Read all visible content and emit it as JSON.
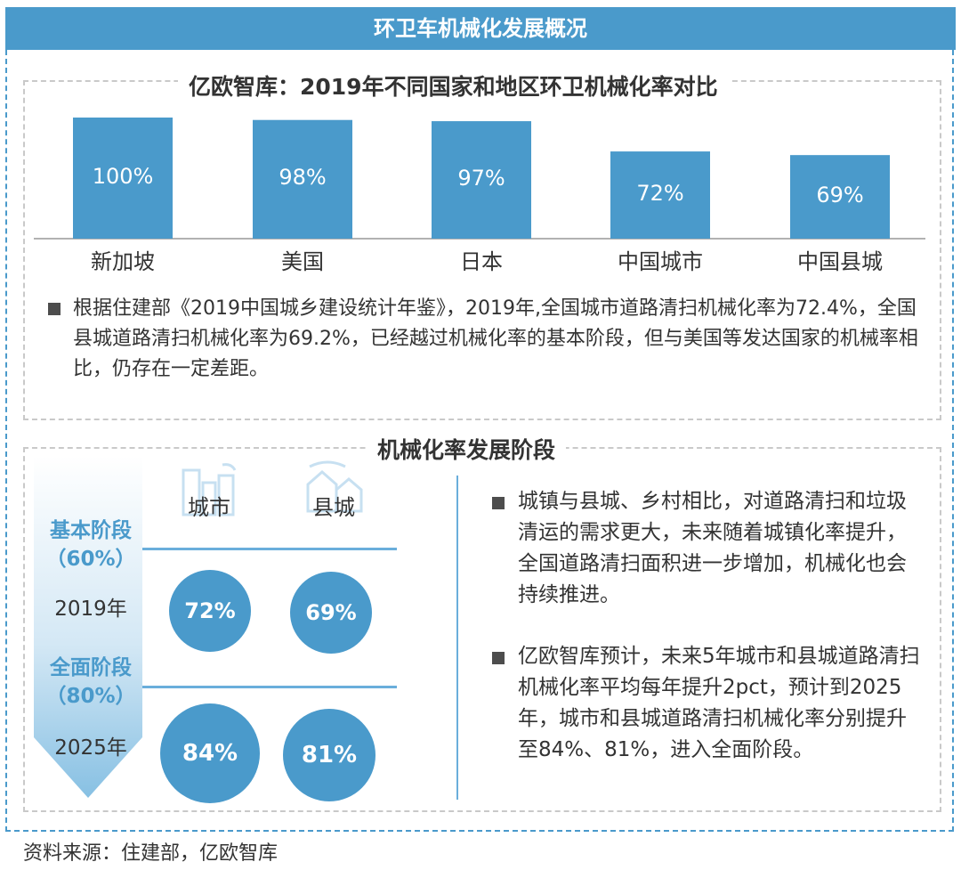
{
  "header": {
    "title": "环卫车机械化发展概况"
  },
  "panel1": {
    "title": "亿欧智库：2019年不同国家和地区环卫机械化率对比",
    "note": "根据住建部《2019中国城乡建设统计年鉴》，2019年,全国城市道路清扫机械化率为72.4%，全国县城道路清扫机械化率为69.2%，已经越过机械化率的基本阶段，但与美国等发达国家的机械率相比，仍存在一定差距。"
  },
  "chart_data": {
    "type": "bar",
    "title": "亿欧智库：2019年不同国家和地区环卫机械化率对比",
    "categories": [
      "新加坡",
      "美国",
      "日本",
      "中国城市",
      "中国县城"
    ],
    "values": [
      100,
      98,
      97,
      72,
      69
    ],
    "value_labels": [
      "100%",
      "98%",
      "97%",
      "72%",
      "69%"
    ],
    "ylim": [
      0,
      100
    ],
    "color": "#4a9acb",
    "grid": false,
    "legend": "none"
  },
  "panel2": {
    "title": "机械化率发展阶段",
    "columns": [
      "城市",
      "县城"
    ],
    "stages": [
      {
        "name": "基本阶段",
        "target": "（60%）",
        "year": "2019年",
        "city": "72%",
        "county": "69%"
      },
      {
        "name": "全面阶段",
        "target": "（80%）",
        "year": "2025年",
        "city": "84%",
        "county": "81%"
      }
    ],
    "bullets": [
      "城镇与县城、乡村相比，对道路清扫和垃圾清运的需求更大，未来随着城镇化率提升，全国道路清扫面积进一步增加，机械化也会持续推进。",
      "亿欧智库预计，未来5年城市和县城道路清扫机械化率平均每年提升2pct，预计到2025年，城市和县城道路清扫机械化率分别提升至84%、81%，进入全面阶段。"
    ]
  },
  "footer": {
    "source": "资料来源：住建部，亿欧智库"
  },
  "colors": {
    "accent": "#4a9acb",
    "text": "#333333"
  }
}
